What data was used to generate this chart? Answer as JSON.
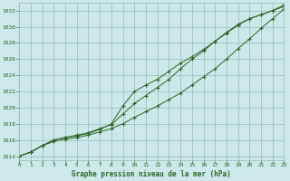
{
  "title": "Graphe pression niveau de la mer (hPa)",
  "bg_color": "#cce8e8",
  "grid_color": "#99bbbb",
  "line_color": "#2d6629",
  "xlim": [
    0,
    23
  ],
  "ylim": [
    1013.5,
    1033.0
  ],
  "yticks": [
    1014,
    1016,
    1018,
    1020,
    1022,
    1024,
    1026,
    1028,
    1030,
    1032
  ],
  "xticks": [
    0,
    1,
    2,
    3,
    4,
    5,
    6,
    7,
    8,
    9,
    10,
    11,
    12,
    13,
    14,
    15,
    16,
    17,
    18,
    19,
    20,
    21,
    22,
    23
  ],
  "series": [
    [
      1014.0,
      1014.5,
      1015.3,
      1015.8,
      1016.1,
      1016.3,
      1016.6,
      1017.0,
      1017.4,
      1018.0,
      1018.8,
      1019.5,
      1020.2,
      1021.0,
      1021.8,
      1022.8,
      1023.8,
      1024.8,
      1026.0,
      1027.3,
      1028.5,
      1029.8,
      1031.0,
      1032.2
    ],
    [
      1014.0,
      1014.5,
      1015.3,
      1016.0,
      1016.3,
      1016.5,
      1016.8,
      1017.3,
      1018.0,
      1020.2,
      1022.0,
      1022.8,
      1023.5,
      1024.5,
      1025.5,
      1026.3,
      1027.2,
      1028.2,
      1029.2,
      1030.2,
      1031.0,
      1031.5,
      1032.0,
      1032.7
    ],
    [
      1014.0,
      1014.5,
      1015.3,
      1016.0,
      1016.3,
      1016.6,
      1016.9,
      1017.4,
      1017.9,
      1019.2,
      1020.5,
      1021.5,
      1022.5,
      1023.5,
      1024.8,
      1026.0,
      1027.0,
      1028.2,
      1029.3,
      1030.3,
      1031.0,
      1031.5,
      1032.0,
      1032.5
    ]
  ]
}
